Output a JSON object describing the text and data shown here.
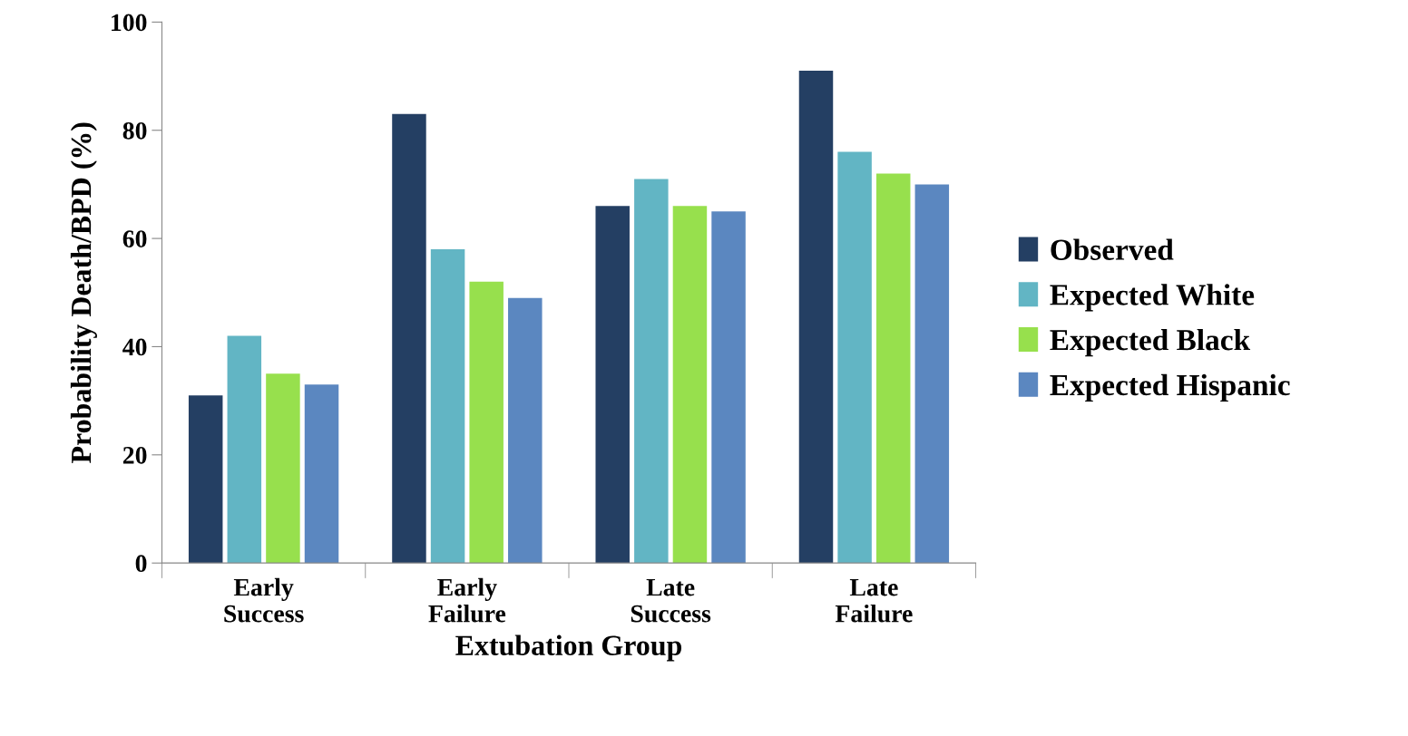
{
  "chart_data": {
    "type": "bar",
    "xlabel": "Extubation Group",
    "ylabel": "Probability Death/BPD (%)",
    "categories": [
      "Early\nSuccess",
      "Early\nFailure",
      "Late\nSuccess",
      "Late\nFailure"
    ],
    "series": [
      {
        "name": "Observed",
        "color": "#243f63",
        "values": [
          31,
          83,
          66,
          91
        ]
      },
      {
        "name": "Expected White",
        "color": "#62b5c4",
        "values": [
          42,
          58,
          71,
          76
        ]
      },
      {
        "name": "Expected Black",
        "color": "#97e04d",
        "values": [
          35,
          52,
          66,
          72
        ]
      },
      {
        "name": "Expected Hispanic",
        "color": "#5b87c0",
        "values": [
          33,
          49,
          65,
          70
        ]
      }
    ],
    "ylim": [
      0,
      100
    ],
    "yticks": [
      0,
      20,
      40,
      60,
      80,
      100
    ],
    "grid": false,
    "legend": "right"
  }
}
